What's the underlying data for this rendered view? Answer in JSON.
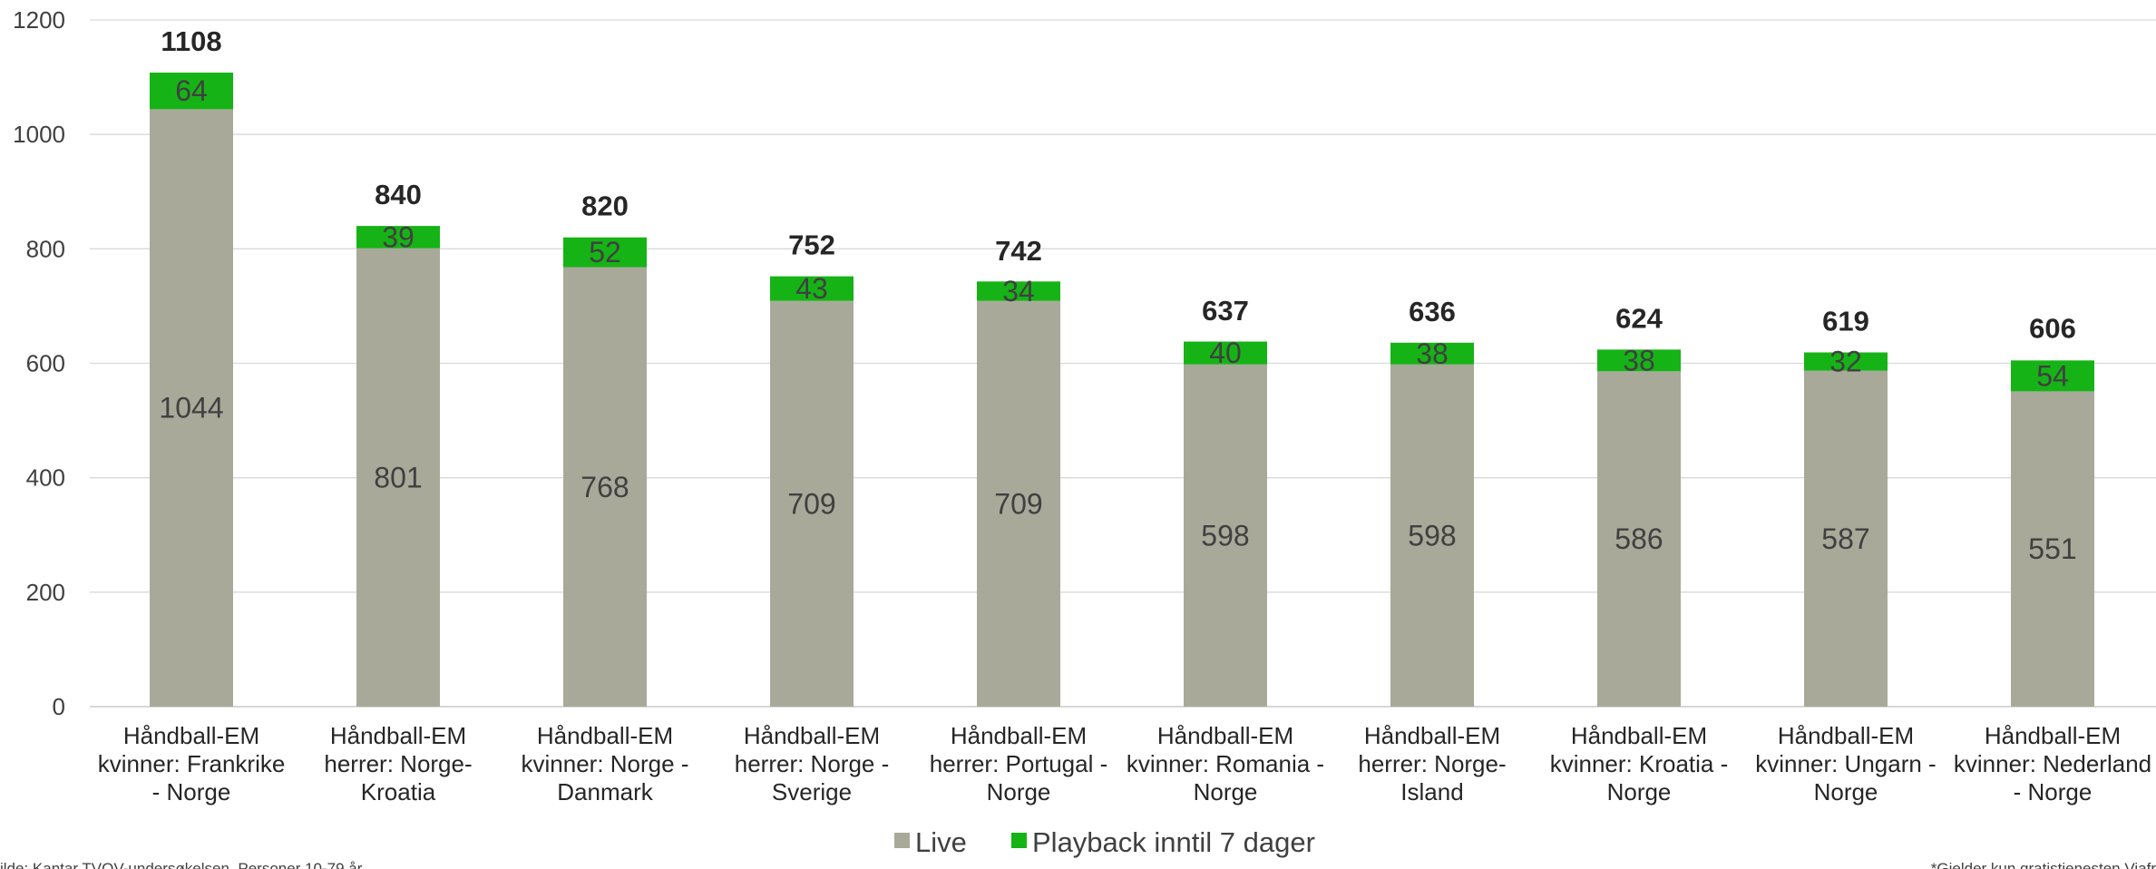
{
  "chart_data": {
    "type": "bar",
    "stacked": true,
    "categories": [
      [
        "Håndball-EM",
        "kvinner: Frankrike",
        "- Norge"
      ],
      [
        "Håndball-EM",
        "herrer: Norge-",
        "Kroatia"
      ],
      [
        "Håndball-EM",
        "kvinner: Norge -",
        "Danmark"
      ],
      [
        "Håndball-EM",
        "herrer: Norge -",
        "Sverige"
      ],
      [
        "Håndball-EM",
        "herrer: Portugal -",
        "Norge"
      ],
      [
        "Håndball-EM",
        "kvinner: Romania -",
        "Norge"
      ],
      [
        "Håndball-EM",
        "herrer: Norge-",
        "Island"
      ],
      [
        "Håndball-EM",
        "kvinner: Kroatia -",
        "Norge"
      ],
      [
        "Håndball-EM",
        "kvinner: Ungarn -",
        "Norge"
      ],
      [
        "Håndball-EM",
        "kvinner: Nederland",
        "- Norge"
      ]
    ],
    "series": [
      {
        "name": "Live",
        "color": "#a9a99a",
        "values": [
          1044,
          801,
          768,
          709,
          709,
          598,
          598,
          586,
          587,
          551
        ]
      },
      {
        "name": "Playback inntil 7 dager",
        "color": "#16b316",
        "values": [
          64,
          39,
          52,
          43,
          34,
          40,
          38,
          38,
          32,
          54
        ]
      }
    ],
    "totals": [
      1108,
      840,
      820,
      752,
      742,
      637,
      636,
      624,
      619,
      606
    ],
    "ylim": [
      0,
      1200
    ],
    "yticks": [
      0,
      200,
      400,
      600,
      800,
      1000,
      1200
    ],
    "grid": true,
    "legend_position": "bottom",
    "title": "",
    "xlabel": "",
    "ylabel": ""
  },
  "footnotes": {
    "left": "ilde: Kantar TVOV-undersøkelsen. Personer 10-79 år",
    "right": "*Gjelder kun gratistjenesten Viafr"
  }
}
